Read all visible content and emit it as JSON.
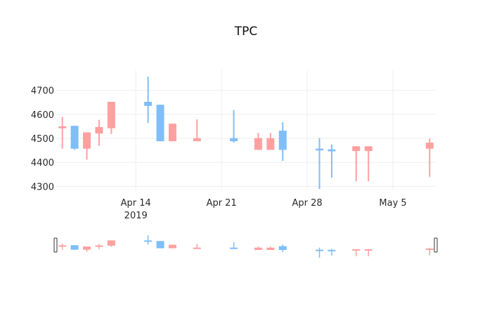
{
  "chart_data": {
    "type": "candlestick",
    "title": "TPC",
    "xlabel": "",
    "ylabel": "",
    "ylim": [
      4275,
      4790
    ],
    "yticks": [
      4300,
      4400,
      4500,
      4600,
      4700
    ],
    "xticks": [
      {
        "date": "2019-04-14",
        "label": "Apr 14",
        "sublabel": "2019"
      },
      {
        "date": "2019-04-21",
        "label": "Apr 21",
        "sublabel": ""
      },
      {
        "date": "2019-04-28",
        "label": "Apr 28",
        "sublabel": ""
      },
      {
        "date": "2019-05-05",
        "label": "May 5",
        "sublabel": ""
      }
    ],
    "xlim": [
      "2019-04-07T12:00",
      "2019-05-08T12:00"
    ],
    "grid": true,
    "rangeslider": true,
    "colors": {
      "increasing": "#ffa0a0",
      "decreasing": "#7fbef9"
    },
    "series": [
      {
        "date": "2019-04-08",
        "open": 4542,
        "high": 4589,
        "low": 4457,
        "close": 4550
      },
      {
        "date": "2019-04-09",
        "open": 4552,
        "high": 4552,
        "low": 4452,
        "close": 4457
      },
      {
        "date": "2019-04-10",
        "open": 4457,
        "high": 4525,
        "low": 4411,
        "close": 4525
      },
      {
        "date": "2019-04-11",
        "open": 4520,
        "high": 4577,
        "low": 4469,
        "close": 4547
      },
      {
        "date": "2019-04-12",
        "open": 4542,
        "high": 4652,
        "low": 4518,
        "close": 4652
      },
      {
        "date": "2019-04-15",
        "open": 4652,
        "high": 4757,
        "low": 4564,
        "close": 4635
      },
      {
        "date": "2019-04-16",
        "open": 4640,
        "high": 4640,
        "low": 4488,
        "close": 4488
      },
      {
        "date": "2019-04-17",
        "open": 4488,
        "high": 4561,
        "low": 4488,
        "close": 4561
      },
      {
        "date": "2019-04-19",
        "open": 4488,
        "high": 4579,
        "low": 4488,
        "close": 4501
      },
      {
        "date": "2019-04-22",
        "open": 4501,
        "high": 4618,
        "low": 4482,
        "close": 4488
      },
      {
        "date": "2019-04-24",
        "open": 4452,
        "high": 4522,
        "low": 4452,
        "close": 4501
      },
      {
        "date": "2019-04-25",
        "open": 4452,
        "high": 4522,
        "low": 4452,
        "close": 4501
      },
      {
        "date": "2019-04-26",
        "open": 4532,
        "high": 4567,
        "low": 4406,
        "close": 4452
      },
      {
        "date": "2019-04-29",
        "open": 4457,
        "high": 4501,
        "low": 4289,
        "close": 4453
      },
      {
        "date": "2019-04-30",
        "open": 4454,
        "high": 4474,
        "low": 4337,
        "close": 4446
      },
      {
        "date": "2019-05-02",
        "open": 4447,
        "high": 4467,
        "low": 4321,
        "close": 4467
      },
      {
        "date": "2019-05-03",
        "open": 4447,
        "high": 4467,
        "low": 4321,
        "close": 4467
      },
      {
        "date": "2019-05-08",
        "open": 4457,
        "high": 4499,
        "low": 4340,
        "close": 4482
      }
    ]
  }
}
